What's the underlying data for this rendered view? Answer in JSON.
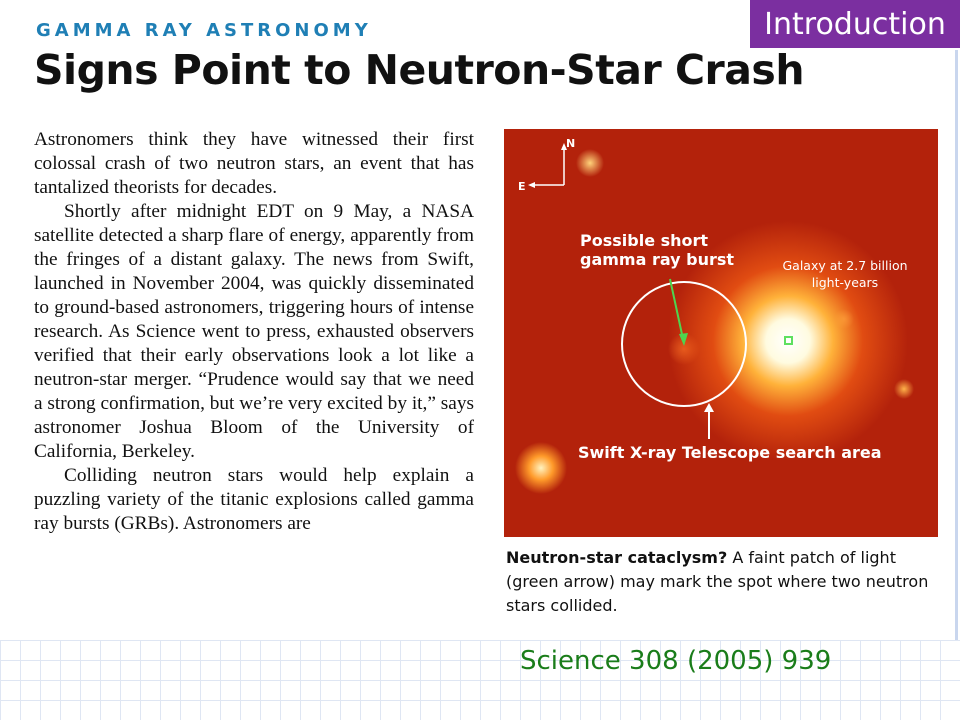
{
  "slide": {
    "section_tag": "Introduction",
    "citation": "Science 308 (2005) 939"
  },
  "article": {
    "kicker": "GAMMA RAY ASTRONOMY",
    "headline": "Signs Point to Neutron-Star Crash",
    "paragraphs": [
      "Astronomers think they have witnessed their first colossal crash of two neutron stars, an event that has tantalized theorists for decades.",
      "Shortly after midnight EDT on 9 May, a NASA satellite detected a sharp flare of energy, apparently from the fringes of a distant galaxy. The news from Swift, launched in November 2004, was quickly disseminated to ground-based astronomers, triggering hours of intense research. As Science went to press, exhausted observers verified that their early observations look a lot like a neutron-star merger. “Prudence would say that we need a strong confirmation, but we’re very excited by it,” says astronomer Joshua Bloom of the University of California, Berkeley.",
      "Colliding neutron stars would help explain a puzzling variety of the titanic explosions called gamma ray bursts (GRBs). Astronomers are"
    ]
  },
  "figure": {
    "compass_north": "N",
    "compass_east": "E",
    "label_burst": "Possible short gamma ray burst",
    "label_galaxy": "Galaxy at 2.7 billion light-years",
    "label_search": "Swift X-ray Telescope search area",
    "caption_lead": "Neutron-star cataclysm?",
    "caption_text": " A faint patch of light (green arrow) may mark the spot where two neutron stars collided."
  }
}
